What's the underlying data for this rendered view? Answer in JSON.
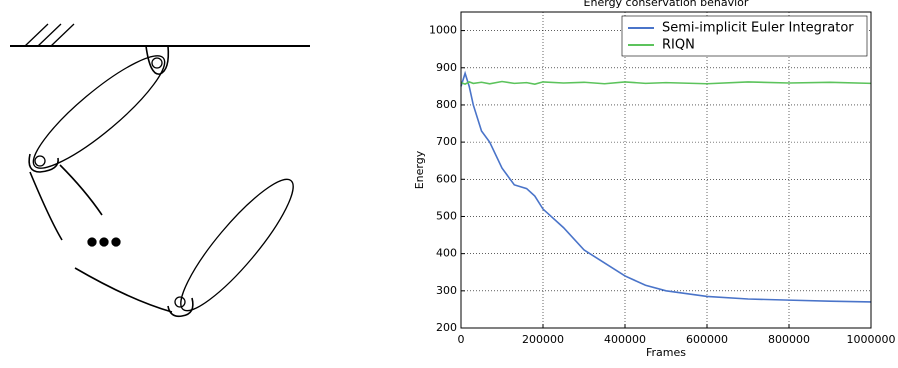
{
  "chart_data": {
    "type": "line",
    "title": "Energy conservation behavior",
    "x_label": "Frames",
    "y_label": "Energy",
    "x": [
      0,
      10000,
      20000,
      30000,
      50000,
      70000,
      100000,
      130000,
      160000,
      180000,
      200000,
      250000,
      300000,
      350000,
      400000,
      450000,
      500000,
      600000,
      700000,
      800000,
      900000,
      1000000
    ],
    "series": [
      {
        "name": "Semi-implicit Euler Integrator",
        "color": "#4a74c9",
        "values": [
          850,
          885,
          850,
          800,
          730,
          700,
          630,
          585,
          575,
          555,
          520,
          470,
          410,
          375,
          340,
          315,
          300,
          285,
          278,
          275,
          272,
          270
        ]
      },
      {
        "name": "RIQN",
        "color": "#5cc35c",
        "values": [
          860,
          856,
          862,
          858,
          861,
          857,
          863,
          858,
          860,
          856,
          862,
          859,
          861,
          857,
          862,
          858,
          860,
          857,
          862,
          859,
          861,
          858
        ]
      }
    ],
    "xlim": [
      0,
      1000000
    ],
    "ylim": [
      200,
      1050
    ],
    "xticks": [
      0,
      200000,
      400000,
      600000,
      800000,
      1000000
    ],
    "yticks": [
      200,
      300,
      400,
      500,
      600,
      700,
      800,
      900,
      1000
    ],
    "grid": true,
    "legend": "upper right"
  }
}
